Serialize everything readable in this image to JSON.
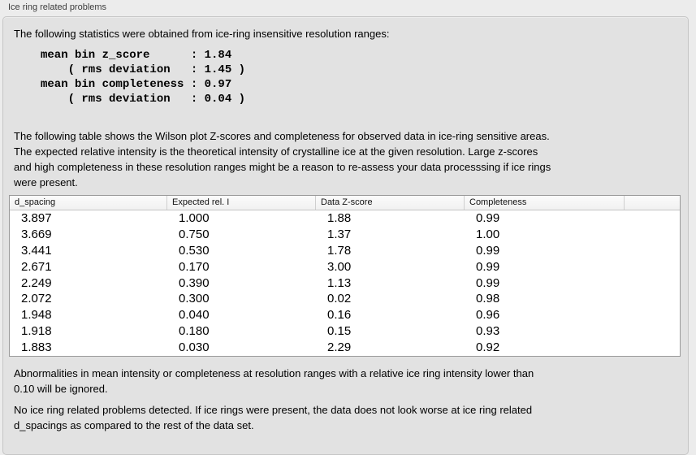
{
  "panel": {
    "title": "Ice ring related problems"
  },
  "intro": {
    "text": "The following statistics were obtained from ice-ring insensitive resolution ranges:",
    "stats_block": "mean bin z_score      : 1.84\n    ( rms deviation   : 1.45 )\nmean bin completeness : 0.97\n    ( rms deviation   : 0.04 )"
  },
  "description": "The following table shows the Wilson plot Z-scores and completeness for observed data in ice-ring sensitive areas.\nThe expected relative intensity is the theoretical intensity of crystalline ice at the given resolution. Large z-scores\nand high completeness in these resolution ranges might be a reason to re-assess your data processsing if ice rings\nwere present.",
  "table": {
    "columns": [
      "d_spacing",
      "Expected rel. I",
      "Data Z-score",
      "Completeness"
    ],
    "rows": [
      [
        "3.897",
        "1.000",
        "1.88",
        "0.99"
      ],
      [
        "3.669",
        "0.750",
        "1.37",
        "1.00"
      ],
      [
        "3.441",
        "0.530",
        "1.78",
        "0.99"
      ],
      [
        "2.671",
        "0.170",
        "3.00",
        "0.99"
      ],
      [
        "2.249",
        "0.390",
        "1.13",
        "0.99"
      ],
      [
        "2.072",
        "0.300",
        "0.02",
        "0.98"
      ],
      [
        "1.948",
        "0.040",
        "0.16",
        "0.96"
      ],
      [
        "1.918",
        "0.180",
        "0.15",
        "0.93"
      ],
      [
        "1.883",
        "0.030",
        "2.29",
        "0.92"
      ]
    ]
  },
  "footnotes": {
    "ignore_note": "Abnormalities in mean intensity or completeness at resolution ranges with a relative ice ring intensity lower than\n0.10 will be ignored.",
    "conclusion": "No ice ring related problems detected. If ice rings were present, the data does not look worse at ice ring related\nd_spacings as compared to the rest of the data set."
  },
  "colors": {
    "page_background": "#ececec",
    "groupbox_background": "#e2e2e2",
    "groupbox_border": "#c6c6c6",
    "table_background": "#ffffff",
    "table_border": "#999999",
    "header_background": "#f5f5f5"
  }
}
